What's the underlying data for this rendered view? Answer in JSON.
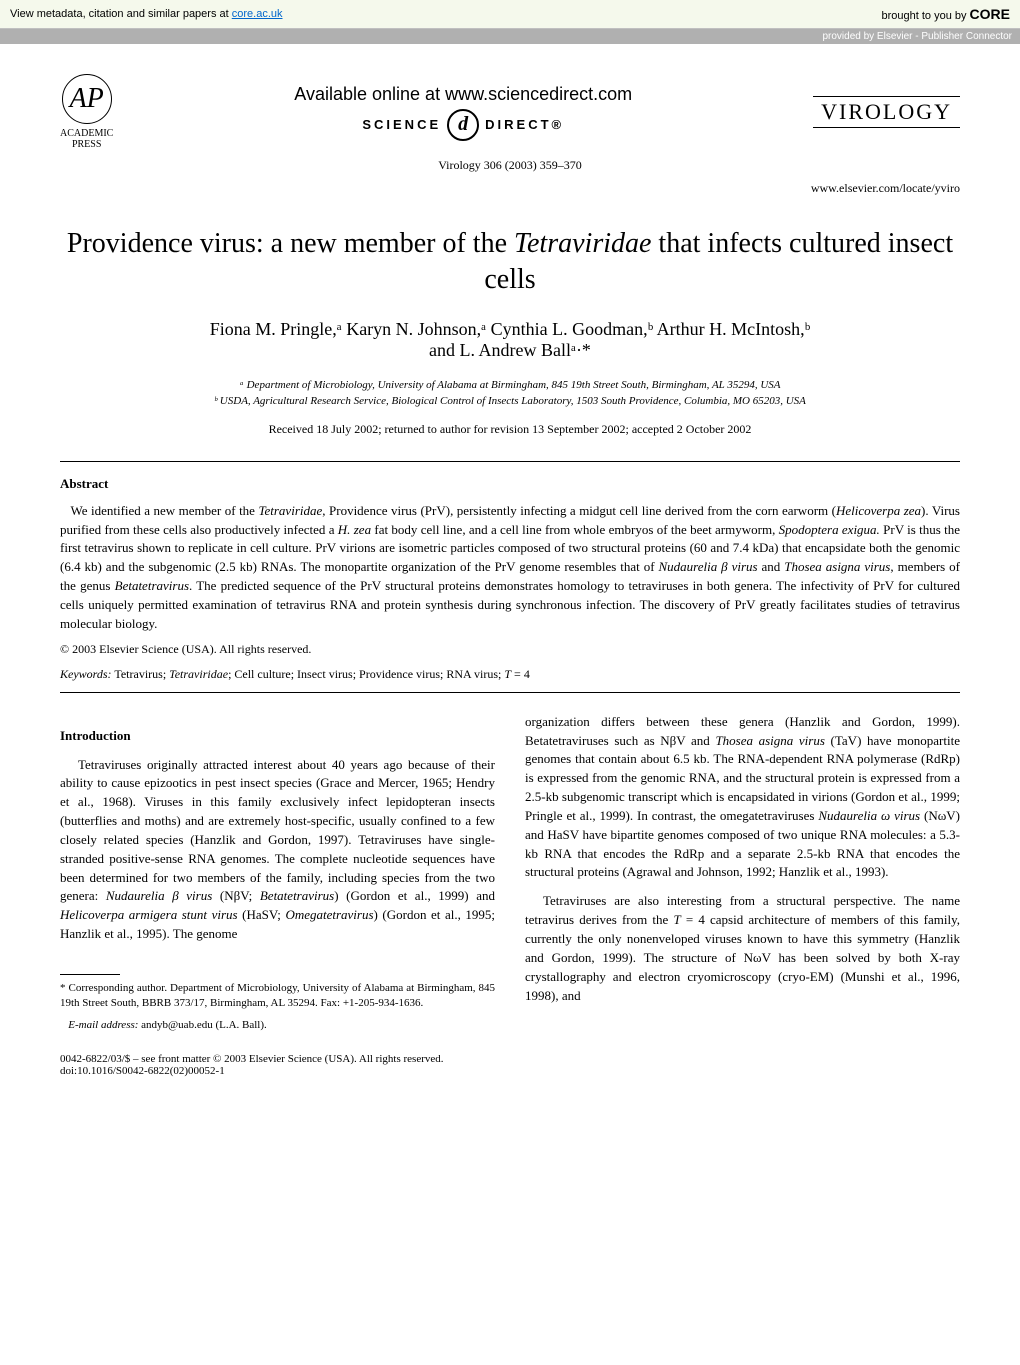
{
  "core_bar": {
    "left_text": "View metadata, citation and similar papers at ",
    "link": "core.ac.uk",
    "right_prefix": "brought to you by ",
    "logo": "CORE",
    "provided": "provided by Elsevier - Publisher Connector"
  },
  "header": {
    "ap_label1": "ACADEMIC",
    "ap_label2": "PRESS",
    "available": "Available online at www.sciencedirect.com",
    "sd_left": "SCIENCE",
    "sd_right": "DIRECT®",
    "journal": "VIROLOGY",
    "citation": "Virology 306 (2003) 359–370",
    "website": "www.elsevier.com/locate/yviro"
  },
  "title_parts": {
    "p1": "Providence virus: a new member of the ",
    "p2": "Tetraviridae",
    "p3": " that infects cultured insect cells"
  },
  "authors_line1": "Fiona M. Pringle,ᵃ Karyn N. Johnson,ᵃ Cynthia L. Goodman,ᵇ Arthur H. McIntosh,ᵇ",
  "authors_line2": "and L. Andrew Ballᵃ·*",
  "affil_a": "ᵃ Department of Microbiology, University of Alabama at Birmingham, 845 19th Street South, Birmingham, AL 35294, USA",
  "affil_b": "ᵇ USDA, Agricultural Research Service, Biological Control of Insects Laboratory, 1503 South Providence, Columbia, MO 65203, USA",
  "dates": "Received 18 July 2002; returned to author for revision 13 September 2002; accepted 2 October 2002",
  "abstract_h": "Abstract",
  "abstract": "We identified a new member of the Tetraviridae, Providence virus (PrV), persistently infecting a midgut cell line derived from the corn earworm (Helicoverpa zea). Virus purified from these cells also productively infected a H. zea fat body cell line, and a cell line from whole embryos of the beet armyworm, Spodoptera exigua. PrV is thus the first tetravirus shown to replicate in cell culture. PrV virions are isometric particles composed of two structural proteins (60 and 7.4 kDa) that encapsidate both the genomic (6.4 kb) and the subgenomic (2.5 kb) RNAs. The monopartite organization of the PrV genome resembles that of Nudaurelia β virus and Thosea asigna virus, members of the genus Betatetravirus. The predicted sequence of the PrV structural proteins demonstrates homology to tetraviruses in both genera. The infectivity of PrV for cultured cells uniquely permitted examination of tetravirus RNA and protein synthesis during synchronous infection. The discovery of PrV greatly facilitates studies of tetravirus molecular biology.",
  "copyright": "© 2003 Elsevier Science (USA). All rights reserved.",
  "keywords_label": "Keywords:",
  "keywords": " Tetravirus; Tetraviridae; Cell culture; Insect virus; Providence virus; RNA virus; T = 4",
  "intro_h": "Introduction",
  "col1_p1": "Tetraviruses originally attracted interest about 40 years ago because of their ability to cause epizootics in pest insect species (Grace and Mercer, 1965; Hendry et al., 1968). Viruses in this family exclusively infect lepidopteran insects (butterflies and moths) and are extremely host-specific, usually confined to a few closely related species (Hanzlik and Gordon, 1997). Tetraviruses have single-stranded positive-sense RNA genomes. The complete nucleotide sequences have been determined for two members of the family, including species from the two genera: Nudaurelia β virus (NβV; Betatetravirus) (Gordon et al., 1999) and Helicoverpa armigera stunt virus (HaSV; Omegatetravirus) (Gordon et al., 1995; Hanzlik et al., 1995). The genome",
  "col2_p1": "organization differs between these genera (Hanzlik and Gordon, 1999). Betatetraviruses such as NβV and Thosea asigna virus (TaV) have monopartite genomes that contain about 6.5 kb. The RNA-dependent RNA polymerase (RdRp) is expressed from the genomic RNA, and the structural protein is expressed from a 2.5-kb subgenomic transcript which is encapsidated in virions (Gordon et al., 1999; Pringle et al., 1999). In contrast, the omegatetraviruses Nudaurelia ω virus (NωV) and HaSV have bipartite genomes composed of two unique RNA molecules: a 5.3-kb RNA that encodes the RdRp and a separate 2.5-kb RNA that encodes the structural proteins (Agrawal and Johnson, 1992; Hanzlik et al., 1993).",
  "col2_p2": "Tetraviruses are also interesting from a structural perspective. The name tetravirus derives from the T = 4 capsid architecture of members of this family, currently the only nonenveloped viruses known to have this symmetry (Hanzlik and Gordon, 1999). The structure of NωV has been solved by both X-ray crystallography and electron cryomicroscopy (cryo-EM) (Munshi et al., 1996, 1998), and",
  "footnote_corr": "* Corresponding author. Department of Microbiology, University of Alabama at Birmingham, 845 19th Street South, BBRB 373/17, Birmingham, AL 35294. Fax: +1-205-934-1636.",
  "footnote_email_label": "E-mail address:",
  "footnote_email": " andyb@uab.edu (L.A. Ball).",
  "footer1": "0042-6822/03/$ – see front matter © 2003 Elsevier Science (USA). All rights reserved.",
  "footer2": "doi:10.1016/S0042-6822(02)00052-1"
}
